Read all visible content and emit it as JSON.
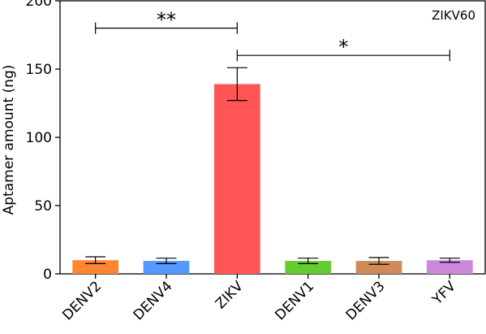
{
  "chart_data": {
    "type": "bar",
    "title": "",
    "annotation": "ZIKV60",
    "xlabel": "",
    "ylabel": "Aptamer amount (ng)",
    "ylim": [
      0,
      200
    ],
    "yticks": [
      0,
      50,
      100,
      150,
      200
    ],
    "categories": [
      "DENV2",
      "DENV4",
      "ZIKV",
      "DENV1",
      "DENV3",
      "YFV"
    ],
    "values": [
      10,
      9.5,
      139,
      9.5,
      9.5,
      10
    ],
    "errors": [
      2.5,
      2,
      12,
      2,
      2.5,
      1.5
    ],
    "colors": [
      "#FF8533",
      "#5599FF",
      "#FF5555",
      "#66CC33",
      "#D08A5A",
      "#CC88DD"
    ],
    "significance": [
      {
        "from": "DENV2",
        "to": "ZIKV",
        "level": 180,
        "label": "**"
      },
      {
        "from": "ZIKV",
        "to": "YFV",
        "level": 160,
        "label": "*"
      }
    ],
    "grid": false,
    "legend": "none"
  }
}
